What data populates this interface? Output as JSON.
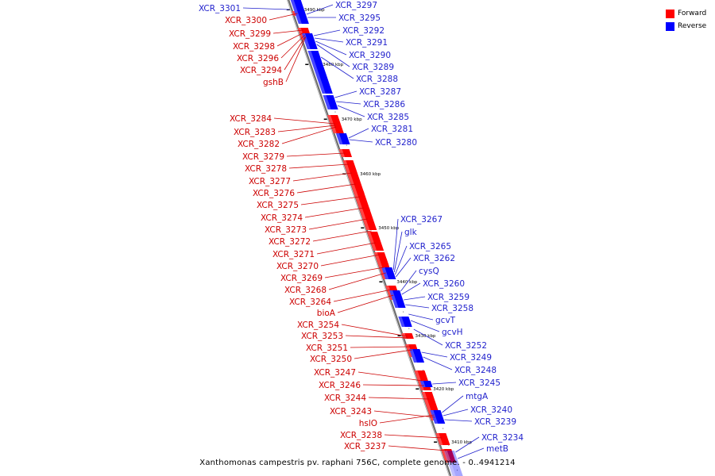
{
  "legend": {
    "items": [
      {
        "label": "Forward",
        "color": "#ff0000"
      },
      {
        "label": "Reverse",
        "color": "#0000ff"
      }
    ]
  },
  "footer": "Xanthomonas campestris pv. raphani 756C, complete genome. - 0..4941214",
  "colors": {
    "forward_text": "#cc0000",
    "reverse_text": "#1f1fcc",
    "forward_gene": "#ff0000",
    "reverse_gene": "#0000ff"
  },
  "kbp_ticks": [
    "3490 kbp",
    "3480 kbp",
    "3470 kbp",
    "3460 kbp",
    "3450 kbp",
    "3440 kbp",
    "3430 kbp",
    "3420 kbp",
    "3410 kbp"
  ],
  "forward_labels": [
    "XCR_3300",
    "XCR_3299",
    "XCR_3298",
    "XCR_3296",
    "XCR_3294",
    "gshB",
    "XCR_3284",
    "XCR_3283",
    "XCR_3282",
    "XCR_3279",
    "XCR_3278",
    "XCR_3277",
    "XCR_3276",
    "XCR_3275",
    "XCR_3274",
    "XCR_3273",
    "XCR_3272",
    "XCR_3271",
    "XCR_3270",
    "XCR_3269",
    "XCR_3268",
    "XCR_3264",
    "bioA",
    "XCR_3254",
    "XCR_3253",
    "XCR_3251",
    "XCR_3250",
    "XCR_3247",
    "XCR_3246",
    "XCR_3244",
    "XCR_3243",
    "hslO",
    "XCR_3238",
    "XCR_3237"
  ],
  "reverse_labels_left": [
    "XCR_3301"
  ],
  "reverse_labels": [
    "XCR_3297",
    "XCR_3295",
    "XCR_3292",
    "XCR_3291",
    "XCR_3290",
    "XCR_3289",
    "XCR_3288",
    "XCR_3287",
    "XCR_3286",
    "XCR_3285",
    "XCR_3281",
    "XCR_3280",
    "XCR_3267",
    "glk",
    "XCR_3265",
    "XCR_3262",
    "cysQ",
    "XCR_3260",
    "XCR_3259",
    "XCR_3258",
    "gcvT",
    "gcvH",
    "XCR_3252",
    "XCR_3249",
    "XCR_3248",
    "XCR_3245",
    "mtgA",
    "XCR_3240",
    "XCR_3239",
    "XCR_3234",
    "metB"
  ]
}
